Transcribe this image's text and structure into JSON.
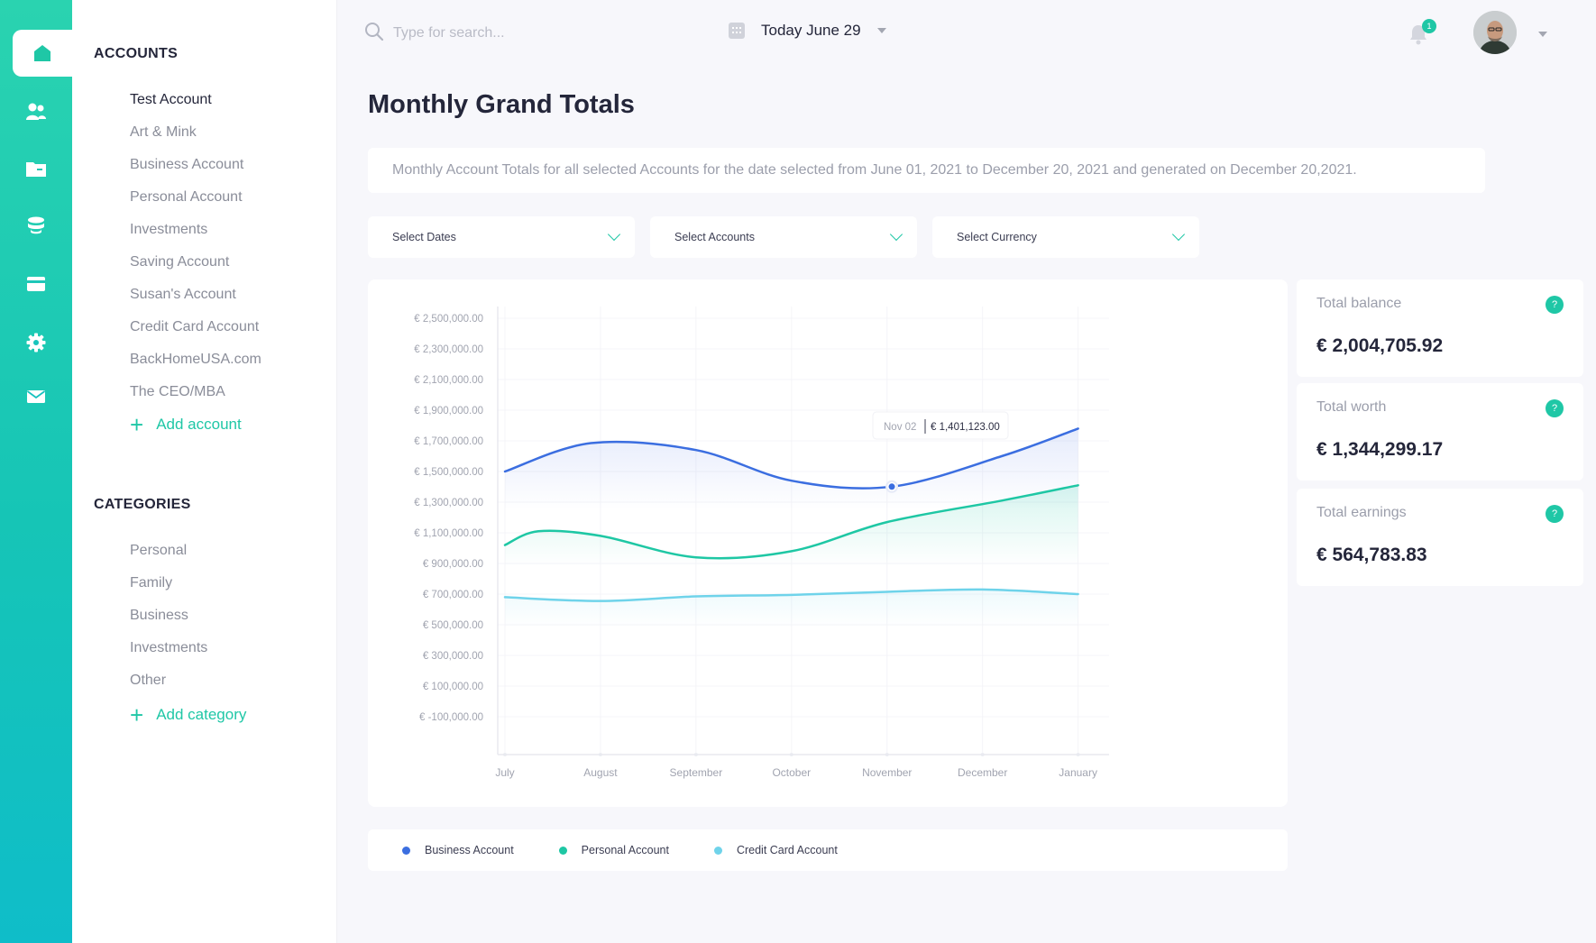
{
  "accent_color": "#1fc7a6",
  "rail": {
    "items": [
      {
        "icon": "home-icon",
        "active": true
      },
      {
        "icon": "users-icon"
      },
      {
        "icon": "folder-icon"
      },
      {
        "icon": "coins-icon"
      },
      {
        "icon": "credit-card-icon"
      },
      {
        "icon": "gear-icon"
      },
      {
        "icon": "mail-icon"
      }
    ]
  },
  "sidebar": {
    "accounts_title": "ACCOUNTS",
    "accounts": [
      "Test Account",
      "Art & Mink",
      "Business Account",
      "Personal Account",
      "Investments",
      "Saving Account",
      "Susan's Account",
      "Credit Card Account",
      "BackHomeUSA.com",
      "The CEO/MBA"
    ],
    "add_account": "Add account",
    "categories_title": "CATEGORIES",
    "categories": [
      "Personal",
      "Family",
      "Business",
      "Investments",
      "Other"
    ],
    "add_category": "Add category"
  },
  "topbar": {
    "search_placeholder": "Type for search...",
    "date_label": "Today June 29",
    "notification_count": "1"
  },
  "main": {
    "title": "Monthly Grand Totals",
    "description": "Monthly Account Totals for all selected Accounts for the date selected from June 01, 2021 to December 20, 2021 and generated on December 20,2021.",
    "filters": {
      "dates": "Select Dates",
      "accounts": "Select Accounts",
      "currency": "Select Currency"
    }
  },
  "stats": {
    "total_balance_label": "Total balance",
    "total_balance_value": "€ 2,004,705.92",
    "total_worth_label": "Total worth",
    "total_worth_value": "€ 1,344,299.17",
    "total_earnings_label": "Total earnings",
    "total_earnings_value": "€ 564,783.83",
    "help_glyph": "?"
  },
  "chart_data": {
    "type": "area",
    "x": [
      "July",
      "August",
      "September",
      "October",
      "November",
      "December",
      "January"
    ],
    "y_ticks": [
      "€ 2,500,000.00",
      "€ 2,300,000.00",
      "€ 2,100,000.00",
      "€ 1,900,000.00",
      "€ 1,700,000.00",
      "€ 1,500,000.00",
      "€ 1,300,000.00",
      "€ 1,100,000.00",
      "€ 900,000.00",
      "€ 700,000.00",
      "€ 500,000.00",
      "€ 300,000.00",
      "€ 100,000.00",
      "€ -100,000.00"
    ],
    "y_tick_values": [
      2500000,
      2300000,
      2100000,
      1900000,
      1700000,
      1500000,
      1300000,
      1100000,
      900000,
      700000,
      500000,
      300000,
      100000,
      -100000
    ],
    "series": [
      {
        "name": "Business Account",
        "color": "#3b6ee0",
        "points": [
          [
            0,
            1500000
          ],
          [
            0.9,
            1685000
          ],
          [
            2.0,
            1640000
          ],
          [
            3.0,
            1440000
          ],
          [
            4.05,
            1401123
          ],
          [
            5.2,
            1600000
          ],
          [
            6.0,
            1780000
          ]
        ]
      },
      {
        "name": "Personal Account",
        "color": "#1ec7a4",
        "points": [
          [
            0,
            1020000
          ],
          [
            0.35,
            1110000
          ],
          [
            1.0,
            1080000
          ],
          [
            2.0,
            940000
          ],
          [
            3.0,
            980000
          ],
          [
            4.0,
            1170000
          ],
          [
            5.2,
            1310000
          ],
          [
            6.0,
            1410000
          ]
        ]
      },
      {
        "name": "Credit Card Account",
        "color": "#6fd3ea",
        "points": [
          [
            0,
            680000
          ],
          [
            1.0,
            655000
          ],
          [
            2.0,
            685000
          ],
          [
            3.0,
            695000
          ],
          [
            4.0,
            715000
          ],
          [
            5.0,
            730000
          ],
          [
            6.0,
            700000
          ]
        ]
      }
    ],
    "tooltip": {
      "date": "Nov 02",
      "value": "€ 1,401,123.00"
    },
    "legend": "bottom",
    "grid": true
  }
}
